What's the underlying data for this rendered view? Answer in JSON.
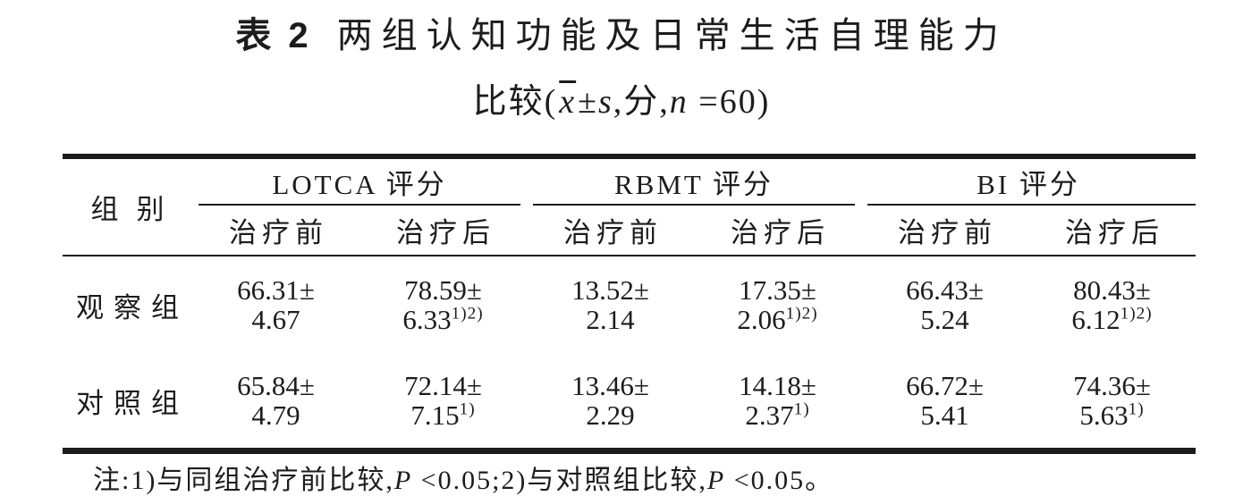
{
  "title": {
    "prefix": "表 2",
    "main": "两组认知功能及日常生活自理能力",
    "sub": {
      "pre": "比较(",
      "xbar": "x",
      "pm": "±",
      "s": "s",
      "sep": ",分,",
      "n": "n",
      "post": " =60)"
    }
  },
  "table": {
    "stub_header": "组别",
    "groups": [
      {
        "label": "LOTCA 评分"
      },
      {
        "label": "RBMT 评分"
      },
      {
        "label": "BI 评分"
      }
    ],
    "subheaders": [
      "治疗前",
      "治疗后"
    ],
    "rows": [
      {
        "group": "观察组",
        "cells": [
          {
            "mean": "66.31±",
            "sd": "4.67",
            "sup": ""
          },
          {
            "mean": "78.59±",
            "sd": "6.33",
            "sup": "1)2)"
          },
          {
            "mean": "13.52±",
            "sd": "2.14",
            "sup": ""
          },
          {
            "mean": "17.35±",
            "sd": "2.06",
            "sup": "1)2)"
          },
          {
            "mean": "66.43±",
            "sd": "5.24",
            "sup": ""
          },
          {
            "mean": "80.43±",
            "sd": "6.12",
            "sup": "1)2)"
          }
        ]
      },
      {
        "group": "对照组",
        "cells": [
          {
            "mean": "65.84±",
            "sd": "4.79",
            "sup": ""
          },
          {
            "mean": "72.14±",
            "sd": "7.15",
            "sup": "1)"
          },
          {
            "mean": "13.46±",
            "sd": "2.29",
            "sup": ""
          },
          {
            "mean": "14.18±",
            "sd": "2.37",
            "sup": "1)"
          },
          {
            "mean": "66.72±",
            "sd": "5.41",
            "sup": ""
          },
          {
            "mean": "74.36±",
            "sd": "5.63",
            "sup": "1)"
          }
        ]
      }
    ]
  },
  "note": {
    "p1": "注:1)与同组治疗前比较,",
    "P1": "P",
    "p2": " <0.05;2)与对照组比较,",
    "P2": "P",
    "p3": " <0.05。"
  },
  "colors": {
    "ink": "#1c1c1c",
    "background": "#ffffff"
  }
}
